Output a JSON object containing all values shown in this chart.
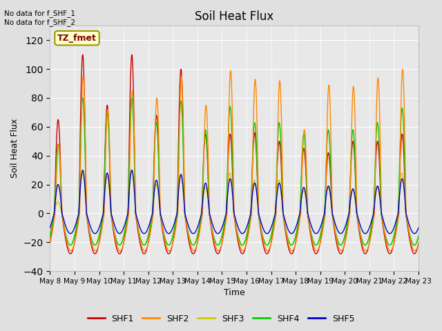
{
  "title": "Soil Heat Flux",
  "ylabel": "Soil Heat Flux",
  "xlabel": "Time",
  "annotation_text": "No data for f_SHF_1\nNo data for f_SHF_2",
  "tz_label": "TZ_fmet",
  "ylim": [
    -40,
    130
  ],
  "yticks": [
    -40,
    -20,
    0,
    20,
    40,
    60,
    80,
    100,
    120
  ],
  "series_colors": [
    "#cc0000",
    "#ff8800",
    "#cccc00",
    "#00cc00",
    "#0000cc"
  ],
  "series_labels": [
    "SHF1",
    "SHF2",
    "SHF3",
    "SHF4",
    "SHF5"
  ],
  "background_color": "#e0e0e0",
  "plot_bg_color": "#e8e8e8",
  "start_day": 8,
  "end_day": 23,
  "num_days": 15
}
